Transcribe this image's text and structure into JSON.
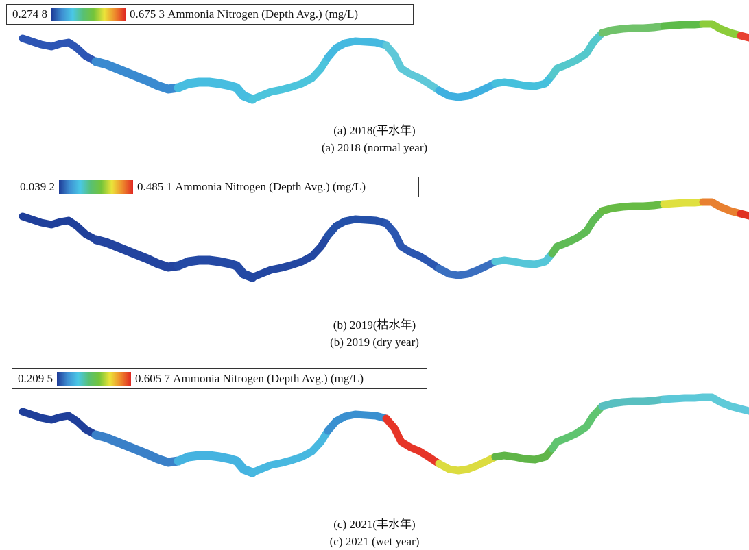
{
  "panels": [
    {
      "legend": {
        "min": "0.274 8",
        "max": "0.675 3",
        "label": "Ammonia Nitrogen (Depth Avg.) (mg/L)"
      },
      "caption_cn": "(a) 2018(平水年)",
      "caption_en": "(a) 2018 (normal year)",
      "colors": [
        "#2d55b4",
        "#3a8ad0",
        "#47bde0",
        "#4cc4dc",
        "#45b9e0",
        "#5ec8d8",
        "#3fb0e0",
        "#45c0dc",
        "#55c8cc",
        "#70c26a",
        "#5dbb4a",
        "#8ccc3a",
        "#e84030"
      ]
    },
    {
      "legend": {
        "min": "0.039 2",
        "max": "0.485 1",
        "label": "Ammonia Nitrogen (Depth Avg.) (mg/L)"
      },
      "caption_cn": "(b) 2019(枯水年)",
      "caption_en": "(b) 2019 (dry year)",
      "colors": [
        "#1f3f9a",
        "#23449f",
        "#2449a4",
        "#2347a1",
        "#2450a8",
        "#2b56b0",
        "#3a6fc0",
        "#55c6d8",
        "#5fbb55",
        "#67bb45",
        "#dfe040",
        "#e88030",
        "#e03020"
      ]
    },
    {
      "legend": {
        "min": "0.209 5",
        "max": "0.605 7",
        "label": "Ammonia Nitrogen (Depth Avg.) (mg/L)"
      },
      "caption_cn": "(c) 2021(丰水年)",
      "caption_en": "(c) 2021 (wet year)",
      "colors": [
        "#1f3f9a",
        "#3a80c8",
        "#45b3e0",
        "#48b8e0",
        "#3a90d0",
        "#e63528",
        "#dcdc40",
        "#60b548",
        "#5fc470",
        "#58bfc0",
        "#5cc8d8",
        "#5fcad8",
        "#60c8dc"
      ]
    }
  ],
  "colorbar": [
    "#1e3a96",
    "#3e8fd2",
    "#4ac8e6",
    "#58c074",
    "#74c43a",
    "#ece43a",
    "#ee8a2c",
    "#e02822"
  ]
}
